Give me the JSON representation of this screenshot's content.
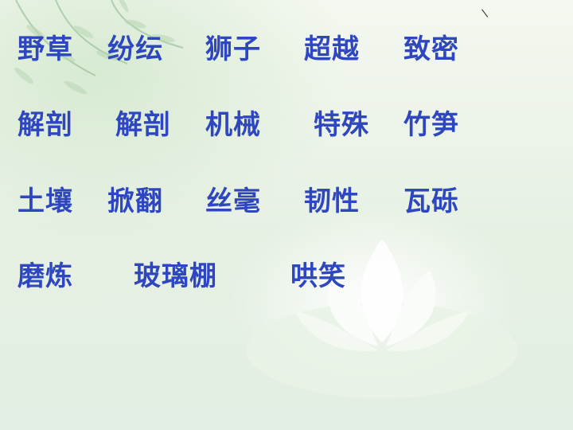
{
  "colors": {
    "text": "#2e46bf",
    "background": "#eef5ea"
  },
  "mark": "\\",
  "rows": [
    [
      "野草",
      "纷纭",
      "狮子",
      "超越",
      "致密"
    ],
    [
      "解剖",
      "解剖",
      "机械",
      "特殊",
      "竹笋"
    ],
    [
      "土壤",
      "掀翻",
      "丝毫",
      "韧性",
      "瓦砾"
    ],
    [
      "磨炼",
      "玻璃棚",
      "哄笑"
    ]
  ]
}
